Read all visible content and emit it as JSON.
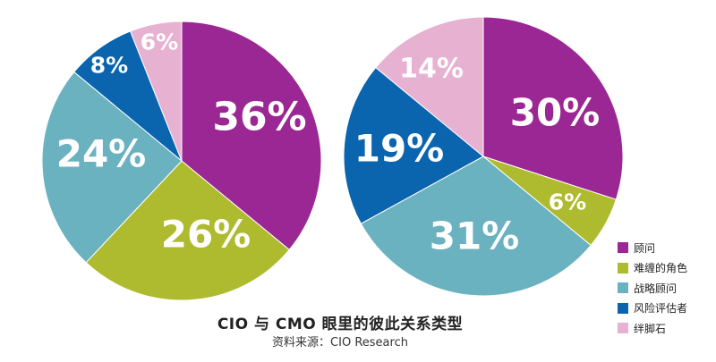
{
  "title": "CIO 与 CMO 眼里的彼此关系类型",
  "source": "资料来源：CIO Research",
  "colors": {
    "顾问": "#9a2793",
    "难缠的角色": "#aebb2e",
    "战略顾问": "#6ab2c0",
    "风险评估者": "#0a64ae",
    "绊脚石": "#e7b1d2"
  },
  "chart_data": [
    {
      "type": "pie",
      "start_angle_deg": 0,
      "direction": "clockwise",
      "labels": [
        "顾问",
        "难缠的角色",
        "战略顾问",
        "风险评估者",
        "绊脚石"
      ],
      "values": [
        36,
        26,
        24,
        8,
        6
      ],
      "value_labels": [
        "36%",
        "26%",
        "24%",
        "8%",
        "6%"
      ]
    },
    {
      "type": "pie",
      "start_angle_deg": 0,
      "direction": "clockwise",
      "labels": [
        "顾问",
        "难缠的角色",
        "战略顾问",
        "风险评估者",
        "绊脚石"
      ],
      "values": [
        30,
        6,
        31,
        19,
        14
      ],
      "value_labels": [
        "30%",
        "6%",
        "31%",
        "19%",
        "14%"
      ]
    }
  ],
  "legend": {
    "placement": "bottom-right",
    "items": [
      "顾问",
      "难缠的角色",
      "战略顾问",
      "风险评估者",
      "绊脚石"
    ]
  }
}
